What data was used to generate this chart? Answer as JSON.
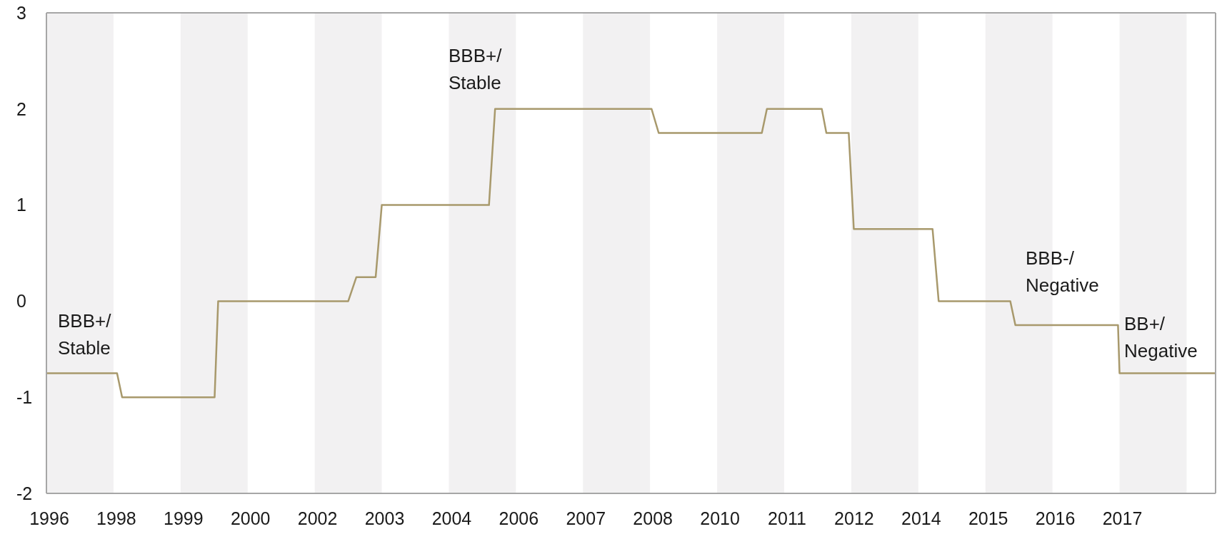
{
  "chart_data": {
    "type": "line",
    "color": "#a8996c",
    "x": [
      1996.36,
      1997.75,
      1997.85,
      1999.67,
      1999.74,
      2002.3,
      2002.46,
      2002.84,
      2002.96,
      2005.07,
      2005.19,
      2008.27,
      2008.41,
      2010.44,
      2010.54,
      2011.62,
      2011.71,
      2012.15,
      2012.25,
      2013.8,
      2013.92,
      2015.33,
      2015.43,
      2017.45,
      2017.48,
      2019.37
    ],
    "values": [
      -0.75,
      -0.75,
      -1,
      -1,
      0,
      0,
      0.25,
      0.25,
      1,
      1,
      2,
      2,
      1.75,
      1.75,
      2,
      2,
      1.75,
      1.75,
      0.75,
      0.75,
      0,
      0,
      -0.25,
      -0.25,
      -0.75,
      -0.75
    ],
    "xlim": [
      1996.36,
      2019.37
    ],
    "xticks": [
      {
        "value": 1996.36,
        "label": "1996"
      },
      {
        "value": 1997.68,
        "label": "1998"
      },
      {
        "value": 1999.0,
        "label": "1999"
      },
      {
        "value": 2000.32,
        "label": "2000"
      },
      {
        "value": 2001.64,
        "label": "2002"
      },
      {
        "value": 2002.96,
        "label": "2003"
      },
      {
        "value": 2004.28,
        "label": "2004"
      },
      {
        "value": 2005.6,
        "label": "2006"
      },
      {
        "value": 2006.92,
        "label": "2007"
      },
      {
        "value": 2008.24,
        "label": "2008"
      },
      {
        "value": 2009.56,
        "label": "2010"
      },
      {
        "value": 2010.88,
        "label": "2011"
      },
      {
        "value": 2012.2,
        "label": "2012"
      },
      {
        "value": 2013.52,
        "label": "2014"
      },
      {
        "value": 2014.84,
        "label": "2015"
      },
      {
        "value": 2016.16,
        "label": "2016"
      },
      {
        "value": 2017.48,
        "label": "2017"
      }
    ],
    "ylim": [
      -2,
      3
    ],
    "yticks": [
      -2,
      -1,
      0,
      1,
      2,
      3
    ],
    "bands": [
      {
        "axis": "x",
        "from": 1996.36,
        "to": 1997.68,
        "color": "#f2f1f2"
      },
      {
        "axis": "x",
        "from": 1999.0,
        "to": 2000.32,
        "color": "#f2f1f2"
      },
      {
        "axis": "x",
        "from": 2001.64,
        "to": 2002.96,
        "color": "#f2f1f2"
      },
      {
        "axis": "x",
        "from": 2004.28,
        "to": 2005.6,
        "color": "#f2f1f2"
      },
      {
        "axis": "x",
        "from": 2006.92,
        "to": 2008.24,
        "color": "#f2f1f2"
      },
      {
        "axis": "x",
        "from": 2009.56,
        "to": 2010.88,
        "color": "#f2f1f2"
      },
      {
        "axis": "x",
        "from": 2012.2,
        "to": 2013.52,
        "color": "#f2f1f2"
      },
      {
        "axis": "x",
        "from": 2014.84,
        "to": 2016.16,
        "color": "#f2f1f2"
      },
      {
        "axis": "x",
        "from": 2017.48,
        "to": 2018.8,
        "color": "#f2f1f2"
      }
    ],
    "annotations": [
      "BBB+/\nStable",
      "BBB+/\nStable",
      "BBB-/\nNegative",
      "BB+/\nNegative"
    ]
  }
}
